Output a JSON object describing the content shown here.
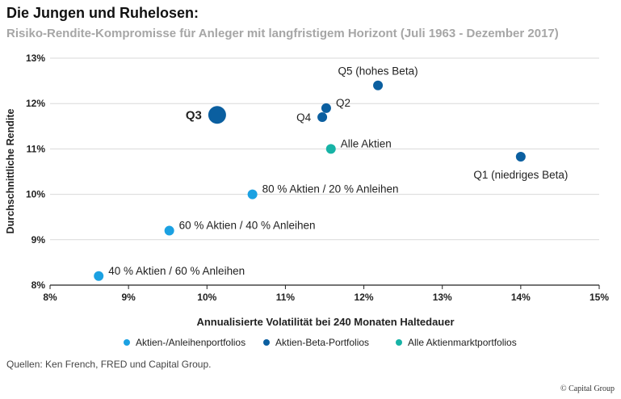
{
  "header": {
    "title": "Die Jungen und Ruhelosen:",
    "subtitle": "Risiko-Rendite-Kompromisse für Anleger mit langfristigem Horizont (Juli 1963 - Dezember 2017)"
  },
  "chart_data": {
    "type": "scatter",
    "xlabel": "Annualisierte Volatilität bei 240 Monaten Haltedauer",
    "ylabel": "Durchschnittliche Rendite",
    "xlim": [
      8,
      15
    ],
    "ylim": [
      8,
      13
    ],
    "x_ticks": [
      8,
      9,
      10,
      11,
      12,
      13,
      14,
      15
    ],
    "y_ticks": [
      8,
      9,
      10,
      11,
      12,
      13
    ],
    "x_tick_labels": [
      "8%",
      "9%",
      "10%",
      "11%",
      "12%",
      "13%",
      "14%",
      "15%"
    ],
    "y_tick_labels": [
      "8%",
      "9%",
      "10%",
      "11%",
      "12%",
      "13%"
    ],
    "grid": "horizontal",
    "categories": [
      {
        "name": "Aktien-/Anleihenportfolios",
        "color": "#1ba1e2"
      },
      {
        "name": "Aktien-Beta-Portfolios",
        "color": "#0b5fa0"
      },
      {
        "name": "Alle Aktienmarktportfolios",
        "color": "#17b3a6"
      }
    ],
    "points": [
      {
        "label": "40 % Aktien / 60 % Anleihen",
        "x": 8.62,
        "y": 8.2,
        "category": 0,
        "highlight": false,
        "label_pos": "right"
      },
      {
        "label": "60 % Aktien / 40 % Anleihen",
        "x": 9.52,
        "y": 9.2,
        "category": 0,
        "highlight": false,
        "label_pos": "right"
      },
      {
        "label": "80 % Aktien / 20 % Anleihen",
        "x": 10.58,
        "y": 10.0,
        "category": 0,
        "highlight": false,
        "label_pos": "right"
      },
      {
        "label": "Q3",
        "x": 10.13,
        "y": 11.75,
        "category": 1,
        "highlight": true,
        "label_pos": "left"
      },
      {
        "label": "Q4",
        "x": 11.47,
        "y": 11.7,
        "category": 1,
        "highlight": false,
        "label_pos": "left"
      },
      {
        "label": "Q2",
        "x": 11.52,
        "y": 11.9,
        "category": 1,
        "highlight": false,
        "label_pos": "right"
      },
      {
        "label": "Q5 (hohes Beta)",
        "x": 12.18,
        "y": 12.4,
        "category": 1,
        "highlight": false,
        "label_pos": "above"
      },
      {
        "label": "Q1 (niedriges Beta)",
        "x": 14.0,
        "y": 10.83,
        "category": 1,
        "highlight": false,
        "label_pos": "below"
      },
      {
        "label": "Alle Aktien",
        "x": 11.58,
        "y": 11.0,
        "category": 2,
        "highlight": false,
        "label_pos": "right"
      }
    ]
  },
  "footer": {
    "source": "Quellen: Ken French, FRED und Capital Group.",
    "copyright": "© Capital Group"
  }
}
